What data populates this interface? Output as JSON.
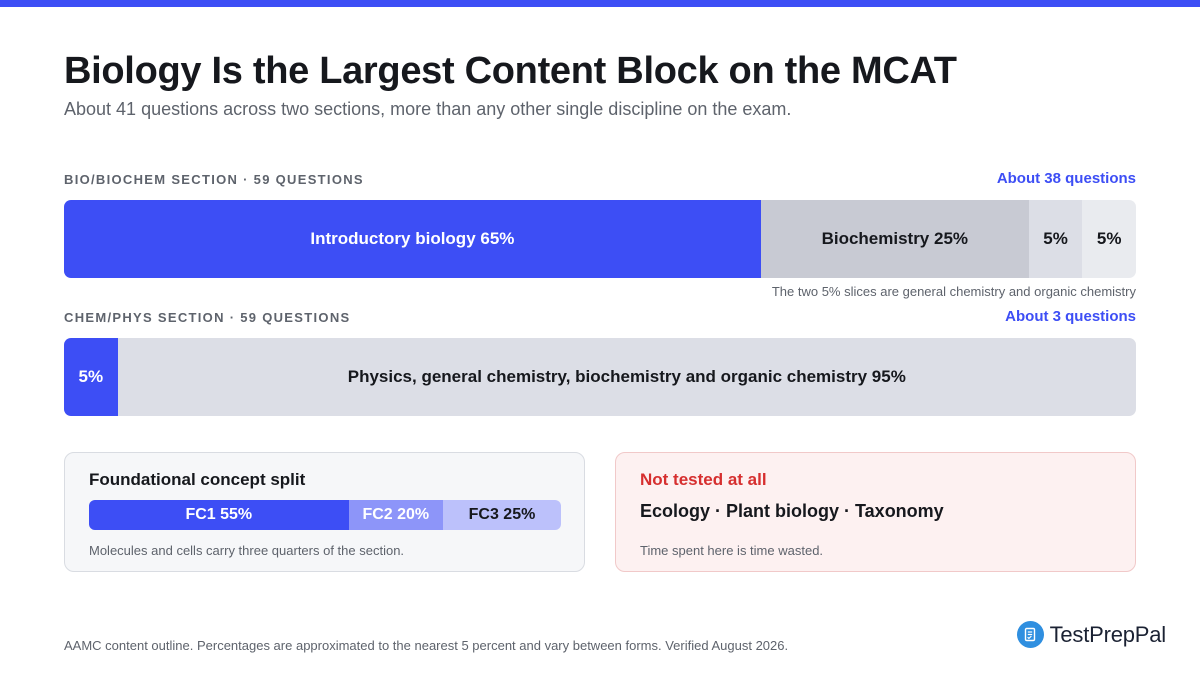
{
  "header": {
    "title": "Biology Is the Largest Content Block on the MCAT",
    "subtitle": "About 41 questions across two sections, more than any other single discipline on the exam."
  },
  "colors": {
    "accent": "#3d4ef5",
    "grey_dark": "#c8cad3",
    "grey_mid": "#dcdee6",
    "grey_light": "#e9ebef",
    "fc2": "#8d95f9",
    "fc3": "#bcc1fb",
    "danger": "#d62f2f"
  },
  "chart_data": [
    {
      "type": "bar",
      "orientation": "horizontal-stacked",
      "section_label": "BIO/BIOCHEM SECTION · 59 QUESTIONS",
      "count_label": "About 38 questions",
      "segments": [
        {
          "label": "Introductory biology 65%",
          "value": 65,
          "color": "#3d4ef5",
          "text_color": "#ffffff"
        },
        {
          "label": "Biochemistry 25%",
          "value": 25,
          "color": "#c8cad3",
          "text_color": "#16181d"
        },
        {
          "label": "5%",
          "value": 5,
          "color": "#dcdee6",
          "text_color": "#16181d"
        },
        {
          "label": "5%",
          "value": 5,
          "color": "#e9ebef",
          "text_color": "#16181d"
        }
      ],
      "note": "The two 5% slices are general chemistry and organic chemistry"
    },
    {
      "type": "bar",
      "orientation": "horizontal-stacked",
      "section_label": "CHEM/PHYS SECTION · 59 QUESTIONS",
      "count_label": "About 3 questions",
      "segments": [
        {
          "label": "5%",
          "value": 5,
          "color": "#3d4ef5",
          "text_color": "#ffffff"
        },
        {
          "label": "Physics, general chemistry, biochemistry and organic chemistry 95%",
          "value": 95,
          "color": "#dcdee6",
          "text_color": "#16181d"
        }
      ]
    },
    {
      "type": "bar",
      "orientation": "horizontal-stacked",
      "title": "Foundational concept split",
      "segments": [
        {
          "label": "FC1 55%",
          "value": 55,
          "color": "#3d4ef5",
          "text_color": "#ffffff"
        },
        {
          "label": "FC2 20%",
          "value": 20,
          "color": "#8d95f9",
          "text_color": "#ffffff"
        },
        {
          "label": "FC3 25%",
          "value": 25,
          "color": "#bcc1fb",
          "text_color": "#16181d"
        }
      ],
      "note": "Molecules and cells carry three quarters of the section."
    }
  ],
  "not_tested": {
    "title": "Not tested at all",
    "topics": "Ecology · Plant biology · Taxonomy",
    "note": "Time spent here is time wasted."
  },
  "footer": {
    "footnote": "AAMC content outline. Percentages are approximated to the nearest 5 percent and vary between forms. Verified August 2026.",
    "brand": "TestPrepPal",
    "brand_icon": "document-checklist-icon"
  }
}
